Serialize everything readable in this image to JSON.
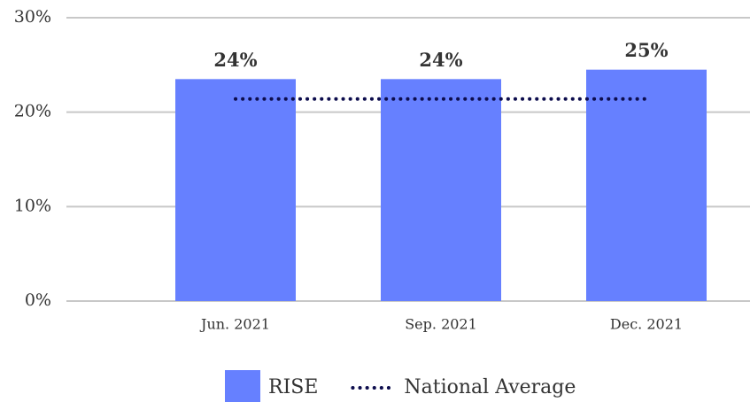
{
  "chart_data": {
    "type": "bar",
    "categories": [
      "Jun. 2021",
      "Sep. 2021",
      "Dec. 2021"
    ],
    "series": [
      {
        "name": "RISE",
        "type": "bar",
        "color": "#6680ff",
        "values": [
          23.5,
          23.5,
          24.5
        ],
        "value_labels": [
          "24%",
          "24%",
          "25%"
        ]
      },
      {
        "name": "National Average",
        "type": "line",
        "style": "dotted",
        "color": "#0d0d4d",
        "values": [
          21.4,
          21.4,
          21.4
        ]
      }
    ],
    "ylim": [
      0,
      30
    ],
    "yticks": [
      {
        "value": 0,
        "label": "0%"
      },
      {
        "value": 10,
        "label": "10%"
      },
      {
        "value": 20,
        "label": "20%"
      },
      {
        "value": 30,
        "label": "30%"
      }
    ],
    "grid": true,
    "legend": "bottom"
  }
}
